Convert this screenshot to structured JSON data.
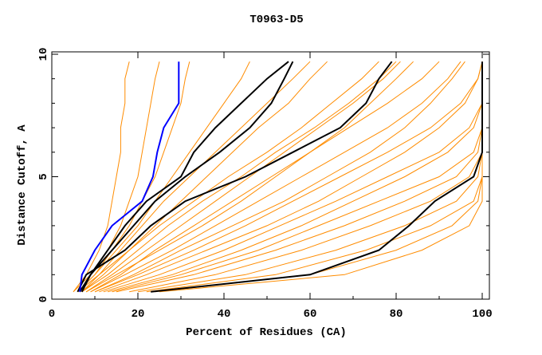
{
  "chart_data": {
    "type": "line",
    "title": "T0963-D5",
    "xlabel": "Percent of Residues (CA)",
    "ylabel": "Distance Cutoff, A",
    "xlim": [
      0,
      100
    ],
    "ylim": [
      0,
      10
    ],
    "xticks": [
      "0",
      "20",
      "40",
      "60",
      "80",
      "100"
    ],
    "yticks": [
      "0",
      "5",
      "10"
    ],
    "grid": false,
    "colors": {
      "models": "#ff8c00",
      "highlight": "#0000ff",
      "reference": "#000000"
    },
    "cutoffs": [
      0.3,
      1,
      2,
      3,
      4,
      5,
      6,
      7,
      8,
      9,
      9.7
    ],
    "model_series": [
      [
        5,
        8,
        11,
        13,
        14,
        15,
        16,
        16,
        17,
        17,
        18
      ],
      [
        5,
        9,
        13,
        16,
        18,
        20,
        21,
        22,
        23,
        24,
        25
      ],
      [
        6,
        10,
        15,
        20,
        24,
        28,
        32,
        36,
        40,
        44,
        46
      ],
      [
        7,
        12,
        18,
        24,
        30,
        36,
        42,
        48,
        55,
        60,
        64
      ],
      [
        8,
        14,
        22,
        30,
        38,
        46,
        54,
        62,
        70,
        77,
        81
      ],
      [
        9,
        17,
        28,
        38,
        48,
        58,
        68,
        78,
        86,
        92,
        95
      ],
      [
        10,
        20,
        33,
        45,
        56,
        67,
        78,
        88,
        95,
        99,
        100
      ],
      [
        12,
        25,
        40,
        53,
        66,
        78,
        90,
        97,
        100,
        100,
        100
      ],
      [
        14,
        30,
        48,
        62,
        76,
        90,
        98,
        100,
        100,
        100,
        100
      ],
      [
        18,
        38,
        58,
        74,
        88,
        97,
        100,
        100,
        100,
        100,
        100
      ],
      [
        20,
        45,
        66,
        82,
        94,
        99,
        100,
        100,
        100,
        100,
        100
      ],
      [
        22,
        52,
        73,
        88,
        98,
        100,
        100,
        100,
        100,
        100,
        100
      ],
      [
        24,
        60,
        80,
        93,
        99,
        100,
        100,
        100,
        100,
        100,
        100
      ],
      [
        25,
        68,
        86,
        97,
        100,
        100,
        100,
        100,
        100,
        100,
        100
      ],
      [
        6,
        11,
        18,
        25,
        33,
        41,
        50,
        58,
        65,
        72,
        76
      ],
      [
        7,
        13,
        20,
        27,
        35,
        44,
        52,
        61,
        69,
        76,
        80
      ],
      [
        8,
        15,
        25,
        35,
        44,
        52,
        60,
        68,
        74,
        80,
        84
      ],
      [
        10,
        19,
        30,
        42,
        54,
        64,
        74,
        82,
        88,
        93,
        96
      ],
      [
        15,
        33,
        52,
        68,
        82,
        94,
        99,
        100,
        100,
        100,
        100
      ],
      [
        6,
        10,
        14,
        18,
        21,
        24,
        26,
        28,
        30,
        31,
        32
      ],
      [
        7,
        11,
        16,
        21,
        26,
        32,
        38,
        44,
        50,
        56,
        60
      ],
      [
        9,
        16,
        24,
        33,
        42,
        51,
        60,
        69,
        78,
        86,
        90
      ],
      [
        11,
        22,
        36,
        50,
        62,
        72,
        82,
        90,
        96,
        99,
        100
      ],
      [
        13,
        28,
        44,
        58,
        70,
        82,
        92,
        98,
        100,
        100,
        100
      ]
    ],
    "highlight_series": [
      6.5,
      7,
      10,
      14,
      21,
      23.5,
      24.5,
      26,
      29.5,
      29.5,
      29.5
    ],
    "reference_series": [
      [
        6.5,
        9,
        13,
        17,
        22,
        30,
        33,
        38,
        44,
        50,
        55
      ],
      [
        7,
        9,
        14,
        19,
        24,
        31,
        39,
        46,
        51,
        54,
        56
      ],
      [
        6,
        8,
        17,
        23,
        31,
        45,
        56,
        67,
        73,
        76,
        79
      ],
      [
        23,
        60,
        76,
        83,
        89,
        98,
        100,
        100,
        100,
        100,
        100
      ]
    ]
  }
}
